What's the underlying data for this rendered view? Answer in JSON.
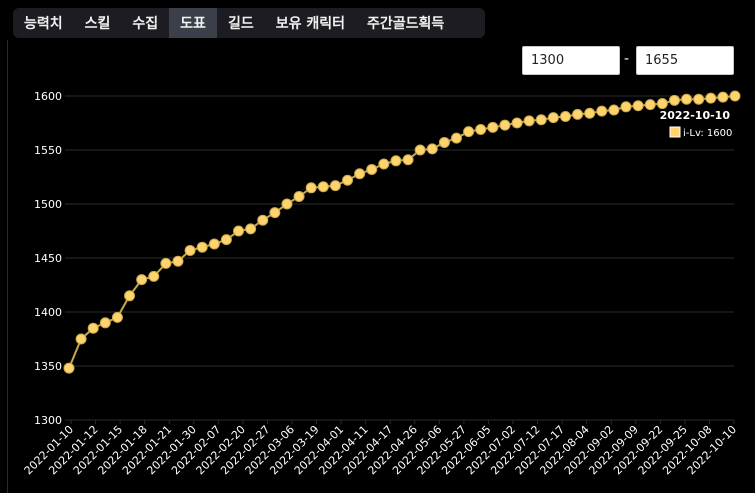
{
  "tabs": [
    {
      "label": "능력치",
      "active": false
    },
    {
      "label": "스킬",
      "active": false
    },
    {
      "label": "수집",
      "active": false
    },
    {
      "label": "도표",
      "active": true
    },
    {
      "label": "길드",
      "active": false
    },
    {
      "label": "보유 캐릭터",
      "active": false
    },
    {
      "label": "주간골드획득",
      "active": false
    }
  ],
  "range": {
    "min_value": "1300",
    "separator": "-",
    "max_value": "1655"
  },
  "tooltip": {
    "date": "2022-10-10",
    "label": "i-Lv: 1600"
  },
  "colors": {
    "line": "#c8a84a",
    "point": "#ffd36e",
    "grid": "#2b2b2b",
    "axis_text": "#ffffff"
  },
  "chart_data": {
    "type": "line",
    "ylim": [
      1300,
      1600
    ],
    "yticks": [
      1300,
      1350,
      1400,
      1450,
      1500,
      1550,
      1600
    ],
    "xtick_labels": [
      "2022-01-10",
      "2022-01-12",
      "2022-01-15",
      "2022-01-18",
      "2022-01-21",
      "2022-01-30",
      "2022-02-07",
      "2022-02-20",
      "2022-02-27",
      "2022-03-06",
      "2022-03-19",
      "2022-04-01",
      "2022-04-11",
      "2022-04-17",
      "2022-04-26",
      "2022-05-06",
      "2022-05-27",
      "2022-06-05",
      "2022-07-02",
      "2022-07-12",
      "2022-07-17",
      "2022-08-04",
      "2022-09-02",
      "2022-09-09",
      "2022-09-22",
      "2022-09-25",
      "2022-10-08",
      "2022-10-10"
    ],
    "series": [
      {
        "name": "i-Lv",
        "values": [
          1348,
          1375,
          1385,
          1390,
          1395,
          1415,
          1430,
          1433,
          1445,
          1447,
          1457,
          1460,
          1463,
          1467,
          1475,
          1477,
          1485,
          1492,
          1500,
          1507,
          1515,
          1516,
          1517,
          1522,
          1528,
          1532,
          1537,
          1540,
          1541,
          1550,
          1551,
          1557,
          1561,
          1567,
          1569,
          1571,
          1573,
          1575,
          1577,
          1578,
          1580,
          1581,
          1583,
          1584,
          1586,
          1587,
          1590,
          1591,
          1592,
          1593,
          1596,
          1597,
          1597,
          1598,
          1599,
          1600
        ]
      }
    ]
  }
}
